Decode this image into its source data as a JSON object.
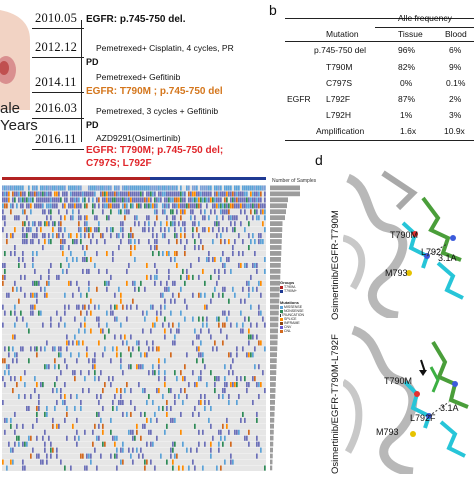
{
  "panel_a": {
    "patient_text_line1": "ale",
    "patient_text_line2": "Years",
    "events": [
      {
        "date": "2010.05",
        "label": "EGFR: p.745-750 del.",
        "color": "#111111",
        "bold": true
      },
      {
        "date": "2012.12",
        "label": "Pemetrexed+ Cisplatin, 4 cycles, PR",
        "color": "#111111",
        "bold": false
      },
      {
        "date": "",
        "label": "PD",
        "color": "#111111",
        "bold": true
      },
      {
        "date": "2014.11",
        "label": "Pemetrexed+ Gefitinib",
        "color": "#111111",
        "bold": false
      },
      {
        "date": "",
        "label": "EGFR: T790M ; p.745-750 del",
        "color": "#d4761c",
        "bold": true
      },
      {
        "date": "2016.03",
        "label": "Pemetrexed, 3 cycles + Gefitinib",
        "color": "#111111",
        "bold": false
      },
      {
        "date": "",
        "label": "PD",
        "color": "#111111",
        "bold": true
      },
      {
        "date": "2016.11",
        "label": "AZD9291(Osimertinib)",
        "color": "#111111",
        "bold": false
      },
      {
        "date": "",
        "label": "EGFR: T790M; p.745-750 del;",
        "color": "#e0262b",
        "bold": true
      },
      {
        "date": "",
        "label": "C797S; L792F",
        "color": "#e0262b",
        "bold": true
      }
    ]
  },
  "panel_b": {
    "letter": "b",
    "header_group": "Alle frequency",
    "header_mutation": "Mutation",
    "header_tissue": "Tissue",
    "header_blood": "Blood",
    "gene": "EGFR",
    "rows": [
      {
        "mutation": "p.745-750 del",
        "tissue": "96%",
        "blood": "6%"
      },
      {
        "mutation": "T790M",
        "tissue": "82%",
        "blood": "9%"
      },
      {
        "mutation": "C797S",
        "tissue": "0%",
        "blood": "0.1%"
      },
      {
        "mutation": "L792F",
        "tissue": "87%",
        "blood": "2%"
      },
      {
        "mutation": "L792H",
        "tissue": "1%",
        "blood": "3%"
      },
      {
        "mutation": "Amplification",
        "tissue": "1.6x",
        "blood": "10.9x"
      }
    ]
  },
  "panel_c": {
    "bar_header": "Number of Samples",
    "groups_title": "Groups",
    "groups": [
      {
        "label": "T790M-",
        "color": "#b22222"
      },
      {
        "label": "T790M+",
        "color": "#1f3a93"
      }
    ],
    "mutations_title": "Mutations",
    "mutations": [
      {
        "label": "MISSENSE",
        "color": "#5aa2d8"
      },
      {
        "label": "NONSENSE",
        "color": "#2e8b57"
      },
      {
        "label": "TRUNCATION",
        "color": "#333333"
      },
      {
        "label": "SPLICE",
        "color": "#ff8c00"
      },
      {
        "label": "INFRAME",
        "color": "#8b4513"
      },
      {
        "label": "CNV",
        "color": "#6a5acd"
      },
      {
        "label": "CNL",
        "color": "#d2691e"
      }
    ]
  },
  "panel_d": {
    "letter": "d",
    "top_label": "Osimertinib/EGFR-T790M",
    "bottom_label": "Osimertinib/EGFR-T790M-L792F",
    "top_residues": [
      "T790M",
      "L792",
      "M793"
    ],
    "top_distance": "3.1A",
    "bottom_residues": [
      "T790M",
      "L792F",
      "M793"
    ],
    "bottom_distance": "3.1A"
  }
}
